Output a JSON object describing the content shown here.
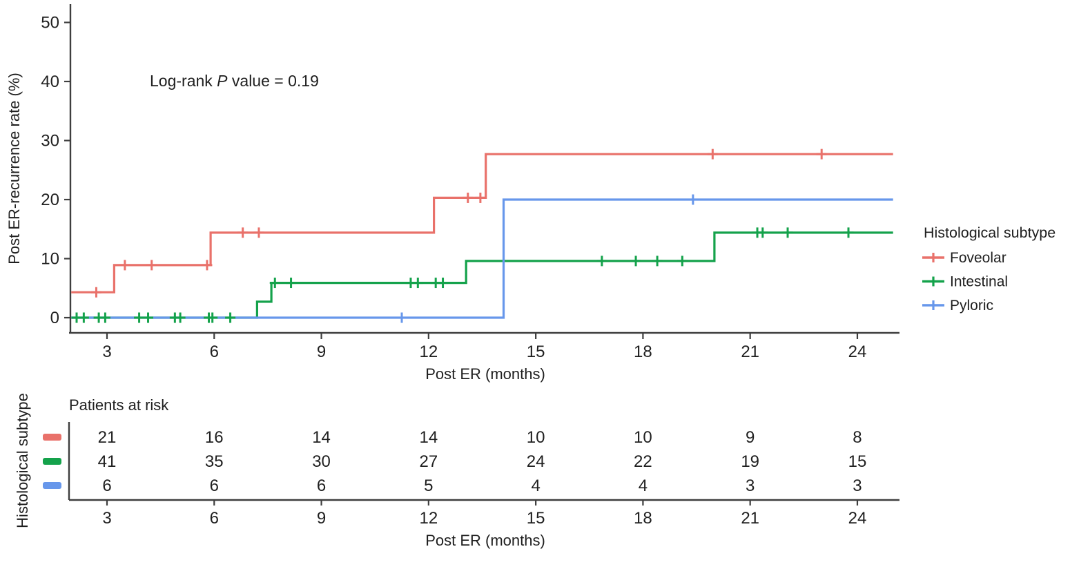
{
  "figure": {
    "annotation": {
      "prefix": "Log-rank ",
      "pvar": "P",
      "suffix": " value = 0.19"
    },
    "colors": {
      "foveolar": "#e9716a",
      "intestinal": "#14a24b",
      "pyloric": "#6797eb",
      "axis": "#3e3e3e",
      "text": "#1f1f1f"
    }
  },
  "chart_data": {
    "type": "line",
    "subtype": "kaplan-meier-step",
    "title": "",
    "xlabel": "Post ER (months)",
    "ylabel": "Post ER-recurrence rate (%)",
    "xlim": [
      2,
      25
    ],
    "ylim": [
      0,
      52
    ],
    "x_ticks": [
      3,
      6,
      9,
      12,
      15,
      18,
      21,
      24
    ],
    "y_ticks": [
      0,
      10,
      20,
      30,
      40,
      50
    ],
    "grid": false,
    "annotation": "Log-rank P value = 0.19",
    "legend_title": "Histological subtype",
    "legend_position": "right",
    "end_month": 25.0,
    "series": [
      {
        "name": "Foveolar",
        "color": "#e9716a",
        "steps": [
          [
            2.0,
            4.3
          ],
          [
            3.2,
            8.9
          ],
          [
            5.9,
            14.4
          ],
          [
            12.15,
            20.3
          ],
          [
            13.6,
            27.7
          ]
        ],
        "censors": [
          [
            2.7,
            4.3
          ],
          [
            3.5,
            8.9
          ],
          [
            4.25,
            8.9
          ],
          [
            5.8,
            8.9
          ],
          [
            6.8,
            14.4
          ],
          [
            7.25,
            14.4
          ],
          [
            13.1,
            20.3
          ],
          [
            13.45,
            20.3
          ],
          [
            19.95,
            27.7
          ],
          [
            23.0,
            27.7
          ]
        ]
      },
      {
        "name": "Intestinal",
        "color": "#14a24b",
        "steps": [
          [
            2.0,
            0
          ],
          [
            7.2,
            2.7
          ],
          [
            7.6,
            5.9
          ],
          [
            13.05,
            9.6
          ],
          [
            20.0,
            14.4
          ]
        ],
        "censors": [
          [
            2.15,
            0
          ],
          [
            2.35,
            0
          ],
          [
            2.77,
            0
          ],
          [
            2.95,
            0
          ],
          [
            3.9,
            0
          ],
          [
            4.15,
            0
          ],
          [
            4.9,
            0
          ],
          [
            5.05,
            0
          ],
          [
            5.85,
            0
          ],
          [
            5.95,
            0
          ],
          [
            6.45,
            0
          ],
          [
            7.7,
            5.9
          ],
          [
            8.15,
            5.9
          ],
          [
            11.5,
            5.9
          ],
          [
            11.7,
            5.9
          ],
          [
            12.2,
            5.9
          ],
          [
            12.4,
            5.9
          ],
          [
            16.85,
            9.6
          ],
          [
            17.8,
            9.6
          ],
          [
            18.4,
            9.6
          ],
          [
            19.1,
            9.6
          ],
          [
            21.2,
            14.4
          ],
          [
            21.35,
            14.4
          ],
          [
            22.05,
            14.4
          ],
          [
            23.75,
            14.4
          ]
        ]
      },
      {
        "name": "Pyloric",
        "color": "#6797eb",
        "steps": [
          [
            2.0,
            0
          ],
          [
            14.1,
            20.0
          ]
        ],
        "censors": [
          [
            11.25,
            0
          ],
          [
            19.4,
            20.0
          ]
        ]
      }
    ],
    "risk_table": {
      "header": "Patients at risk",
      "side_label": "Histological subtype",
      "xlabel": "Post ER (months)",
      "months": [
        3,
        6,
        9,
        12,
        15,
        18,
        21,
        24
      ],
      "rows": [
        {
          "name": "Foveolar",
          "color": "#e9716a",
          "counts": [
            21,
            16,
            14,
            14,
            10,
            10,
            9,
            8
          ]
        },
        {
          "name": "Intestinal",
          "color": "#14a24b",
          "counts": [
            41,
            35,
            30,
            27,
            24,
            22,
            19,
            15
          ]
        },
        {
          "name": "Pyloric",
          "color": "#6797eb",
          "counts": [
            6,
            6,
            6,
            5,
            4,
            4,
            3,
            3
          ]
        }
      ]
    }
  }
}
